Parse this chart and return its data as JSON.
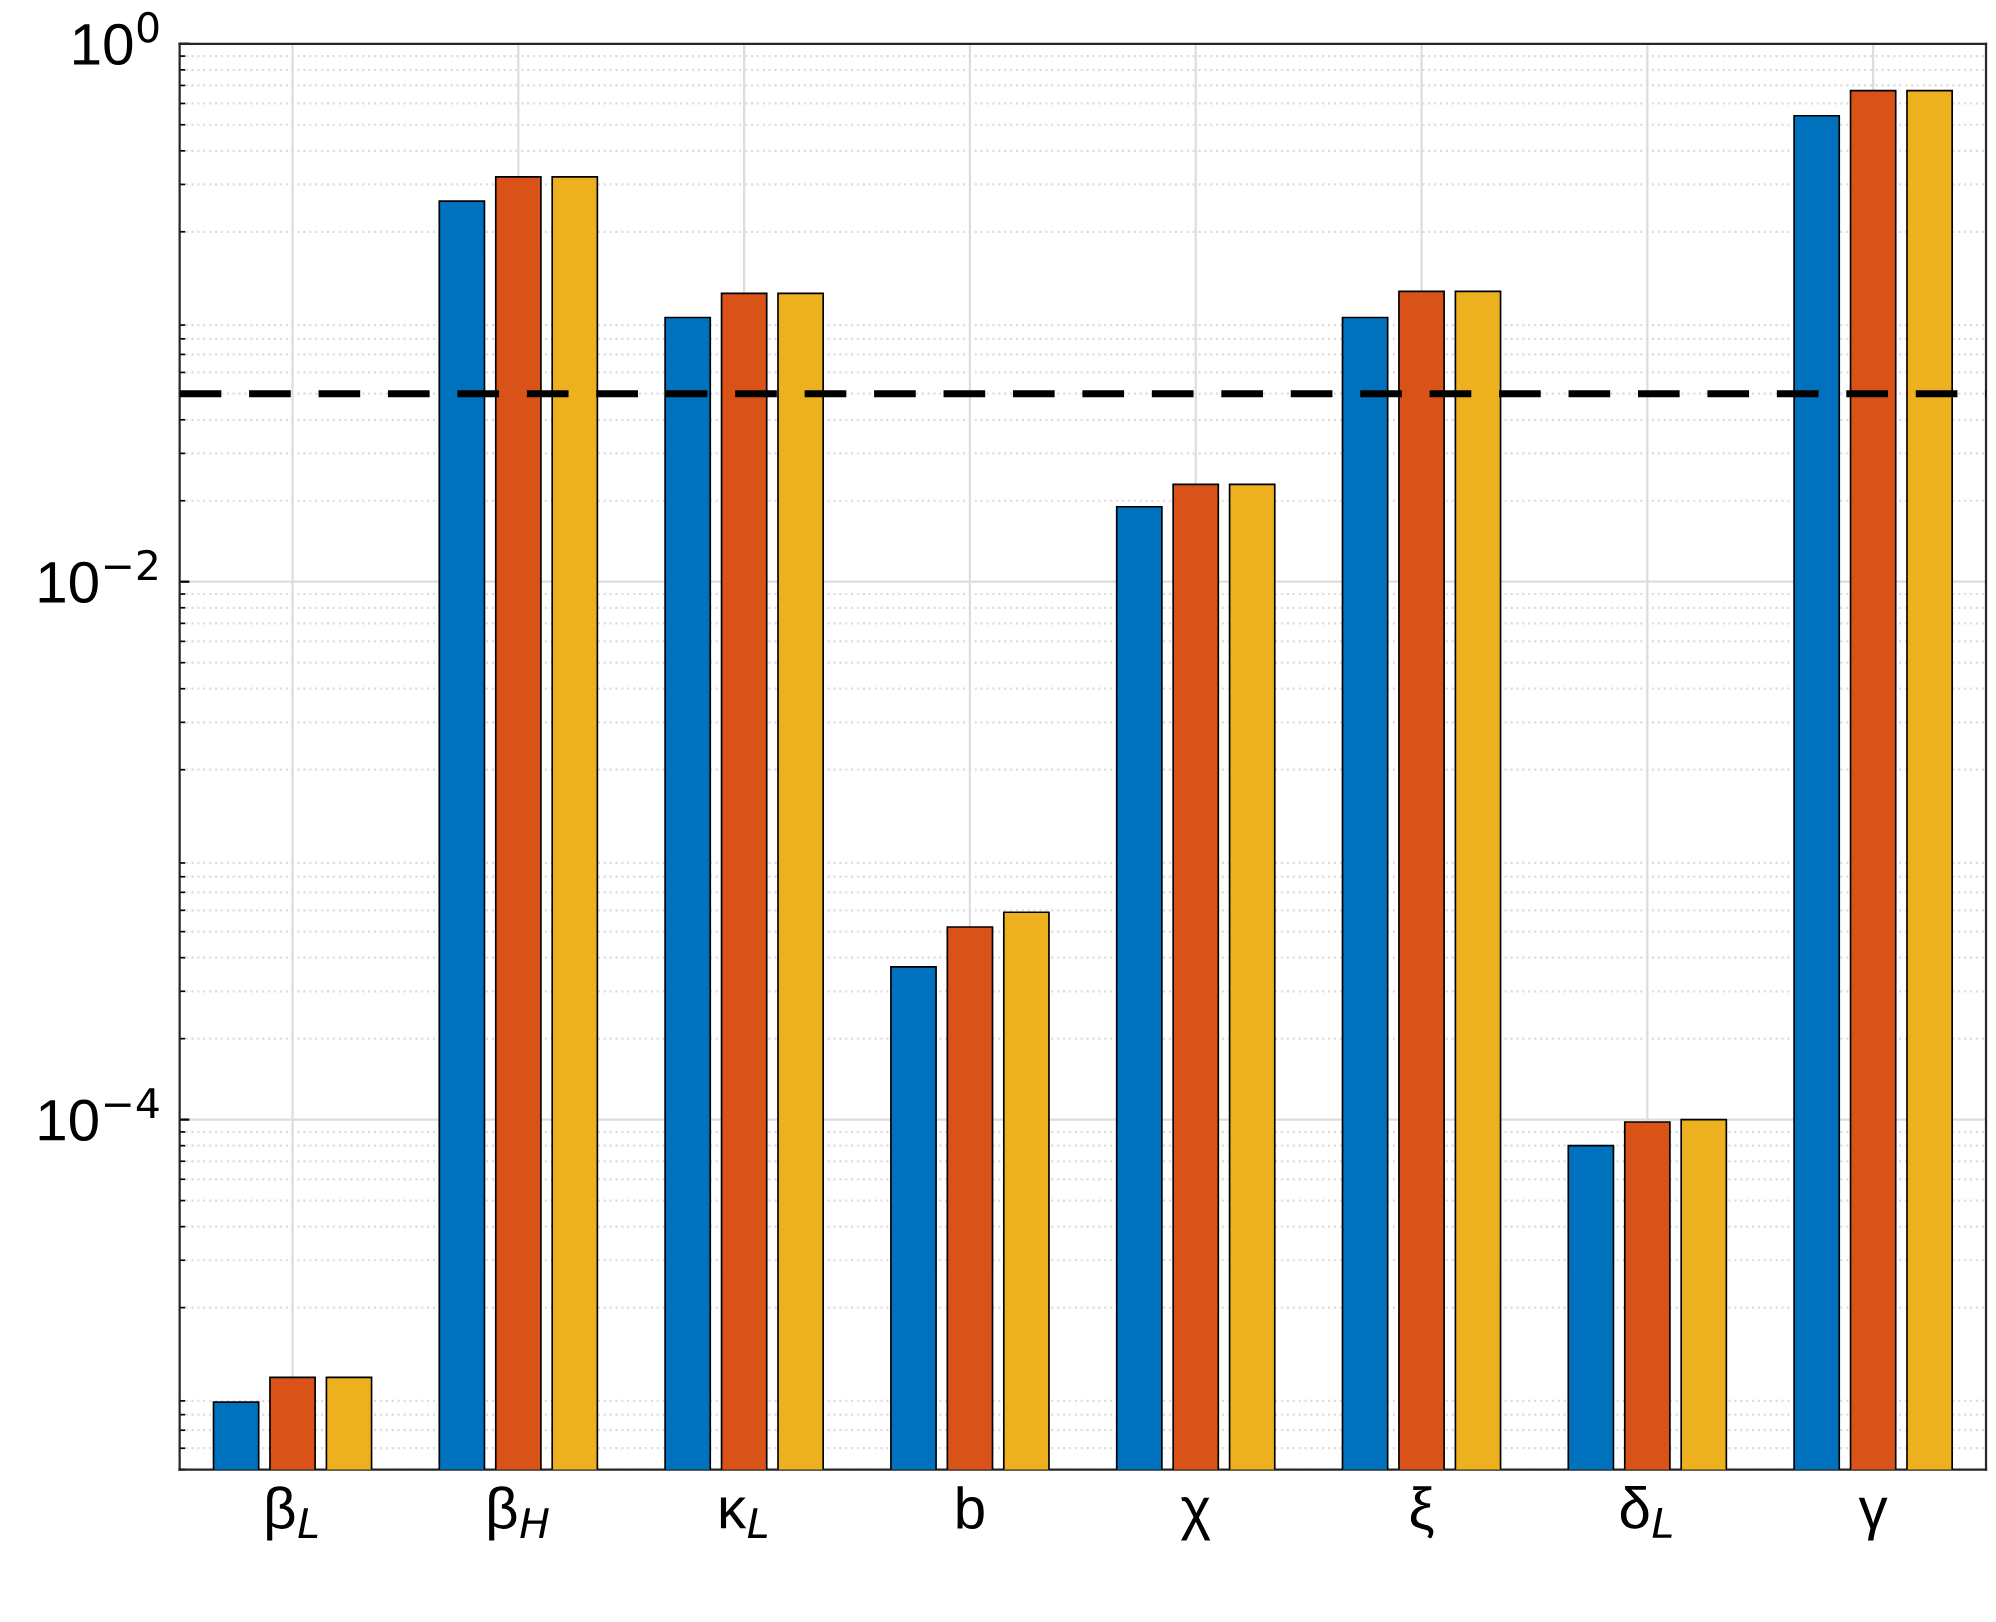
{
  "chart_data": {
    "type": "bar",
    "categories": [
      "β$_{L}$",
      "β$_{H}$",
      "κ$_{L}$",
      "b",
      "χ",
      "ξ",
      "δ$_{L}$",
      "γ"
    ],
    "series": [
      {
        "color": "#0072bd",
        "values": [
          8.9e-06,
          0.26,
          0.096,
          0.00037,
          0.019,
          0.096,
          8e-05,
          0.54
        ]
      },
      {
        "color": "#d95319",
        "values": [
          1.1e-05,
          0.32,
          0.118,
          0.00052,
          0.023,
          0.12,
          9.8e-05,
          0.67
        ]
      },
      {
        "color": "#edb120",
        "values": [
          1.1e-05,
          0.32,
          0.118,
          0.00059,
          0.023,
          0.12,
          0.0001,
          0.67
        ]
      }
    ],
    "log": "y",
    "ylim": [
      5e-06,
      1
    ],
    "yticks": [
      {
        "value": 0.0001,
        "label": "10$^{−4}$"
      },
      {
        "value": 0.01,
        "label": "10$^{−2}$"
      },
      {
        "value": 1,
        "label": "10$^{0}$"
      }
    ],
    "grid": true,
    "ref_lines": [
      {
        "axis": "y",
        "value": 0.05,
        "color": "#000000",
        "line_style": "dashed"
      }
    ]
  }
}
